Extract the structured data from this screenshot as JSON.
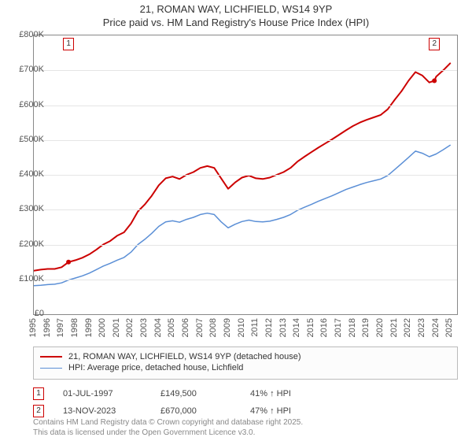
{
  "title": {
    "line1": "21, ROMAN WAY, LICHFIELD, WS14 9YP",
    "line2": "Price paid vs. HM Land Registry's House Price Index (HPI)",
    "fontsize": 13,
    "color": "#333333"
  },
  "chart": {
    "type": "line",
    "background_color": "#ffffff",
    "border_color": "#888888",
    "grid_color": "#e5e5e5",
    "label_fontsize": 11,
    "label_color": "#555555",
    "x": {
      "min": 1995,
      "max": 2025.5,
      "ticks": [
        1995,
        1996,
        1997,
        1998,
        1999,
        2000,
        2001,
        2002,
        2003,
        2004,
        2005,
        2006,
        2007,
        2008,
        2009,
        2010,
        2011,
        2012,
        2013,
        2014,
        2015,
        2016,
        2017,
        2018,
        2019,
        2020,
        2021,
        2022,
        2023,
        2024,
        2025
      ]
    },
    "y": {
      "min": 0,
      "max": 800000,
      "ticks": [
        {
          "v": 0,
          "label": "£0"
        },
        {
          "v": 100000,
          "label": "£100K"
        },
        {
          "v": 200000,
          "label": "£200K"
        },
        {
          "v": 300000,
          "label": "£300K"
        },
        {
          "v": 400000,
          "label": "£400K"
        },
        {
          "v": 500000,
          "label": "£500K"
        },
        {
          "v": 600000,
          "label": "£600K"
        },
        {
          "v": 700000,
          "label": "£700K"
        },
        {
          "v": 800000,
          "label": "£800K"
        }
      ]
    },
    "series": [
      {
        "name": "property",
        "label": "21, ROMAN WAY, LICHFIELD, WS14 9YP (detached house)",
        "color": "#cc0000",
        "line_width": 2,
        "points": [
          [
            1995.0,
            125000
          ],
          [
            1995.5,
            128000
          ],
          [
            1996.0,
            130000
          ],
          [
            1996.5,
            130000
          ],
          [
            1997.0,
            135000
          ],
          [
            1997.5,
            149500
          ],
          [
            1998.0,
            155000
          ],
          [
            1998.5,
            162000
          ],
          [
            1999.0,
            172000
          ],
          [
            1999.5,
            185000
          ],
          [
            2000.0,
            200000
          ],
          [
            2000.5,
            210000
          ],
          [
            2001.0,
            225000
          ],
          [
            2001.5,
            235000
          ],
          [
            2002.0,
            260000
          ],
          [
            2002.5,
            295000
          ],
          [
            2003.0,
            315000
          ],
          [
            2003.5,
            340000
          ],
          [
            2004.0,
            370000
          ],
          [
            2004.5,
            390000
          ],
          [
            2005.0,
            395000
          ],
          [
            2005.5,
            388000
          ],
          [
            2006.0,
            400000
          ],
          [
            2006.5,
            408000
          ],
          [
            2007.0,
            420000
          ],
          [
            2007.5,
            425000
          ],
          [
            2008.0,
            420000
          ],
          [
            2008.5,
            390000
          ],
          [
            2009.0,
            360000
          ],
          [
            2009.5,
            378000
          ],
          [
            2010.0,
            392000
          ],
          [
            2010.5,
            398000
          ],
          [
            2011.0,
            390000
          ],
          [
            2011.5,
            388000
          ],
          [
            2012.0,
            392000
          ],
          [
            2012.5,
            400000
          ],
          [
            2013.0,
            408000
          ],
          [
            2013.5,
            420000
          ],
          [
            2014.0,
            438000
          ],
          [
            2014.5,
            452000
          ],
          [
            2015.0,
            465000
          ],
          [
            2015.5,
            478000
          ],
          [
            2016.0,
            490000
          ],
          [
            2016.5,
            502000
          ],
          [
            2017.0,
            515000
          ],
          [
            2017.5,
            528000
          ],
          [
            2018.0,
            540000
          ],
          [
            2018.5,
            550000
          ],
          [
            2019.0,
            558000
          ],
          [
            2019.5,
            565000
          ],
          [
            2020.0,
            572000
          ],
          [
            2020.5,
            588000
          ],
          [
            2021.0,
            615000
          ],
          [
            2021.5,
            640000
          ],
          [
            2022.0,
            670000
          ],
          [
            2022.5,
            695000
          ],
          [
            2023.0,
            685000
          ],
          [
            2023.5,
            665000
          ],
          [
            2023.87,
            670000
          ],
          [
            2024.0,
            682000
          ],
          [
            2024.5,
            700000
          ],
          [
            2025.0,
            720000
          ]
        ]
      },
      {
        "name": "hpi",
        "label": "HPI: Average price, detached house, Lichfield",
        "color": "#5b8fd6",
        "line_width": 1.5,
        "points": [
          [
            1995.0,
            82000
          ],
          [
            1995.5,
            83000
          ],
          [
            1996.0,
            85000
          ],
          [
            1996.5,
            86000
          ],
          [
            1997.0,
            90000
          ],
          [
            1997.5,
            98000
          ],
          [
            1998.0,
            104000
          ],
          [
            1998.5,
            110000
          ],
          [
            1999.0,
            118000
          ],
          [
            1999.5,
            128000
          ],
          [
            2000.0,
            138000
          ],
          [
            2000.5,
            146000
          ],
          [
            2001.0,
            155000
          ],
          [
            2001.5,
            163000
          ],
          [
            2002.0,
            178000
          ],
          [
            2002.5,
            200000
          ],
          [
            2003.0,
            215000
          ],
          [
            2003.5,
            232000
          ],
          [
            2004.0,
            252000
          ],
          [
            2004.5,
            265000
          ],
          [
            2005.0,
            268000
          ],
          [
            2005.5,
            264000
          ],
          [
            2006.0,
            272000
          ],
          [
            2006.5,
            278000
          ],
          [
            2007.0,
            286000
          ],
          [
            2007.5,
            290000
          ],
          [
            2008.0,
            286000
          ],
          [
            2008.5,
            265000
          ],
          [
            2009.0,
            248000
          ],
          [
            2009.5,
            258000
          ],
          [
            2010.0,
            266000
          ],
          [
            2010.5,
            270000
          ],
          [
            2011.0,
            266000
          ],
          [
            2011.5,
            265000
          ],
          [
            2012.0,
            267000
          ],
          [
            2012.5,
            272000
          ],
          [
            2013.0,
            278000
          ],
          [
            2013.5,
            286000
          ],
          [
            2014.0,
            298000
          ],
          [
            2014.5,
            307000
          ],
          [
            2015.0,
            315000
          ],
          [
            2015.5,
            324000
          ],
          [
            2016.0,
            332000
          ],
          [
            2016.5,
            340000
          ],
          [
            2017.0,
            349000
          ],
          [
            2017.5,
            358000
          ],
          [
            2018.0,
            365000
          ],
          [
            2018.5,
            372000
          ],
          [
            2019.0,
            378000
          ],
          [
            2019.5,
            383000
          ],
          [
            2020.0,
            388000
          ],
          [
            2020.5,
            398000
          ],
          [
            2021.0,
            415000
          ],
          [
            2021.5,
            432000
          ],
          [
            2022.0,
            450000
          ],
          [
            2022.5,
            468000
          ],
          [
            2023.0,
            462000
          ],
          [
            2023.5,
            452000
          ],
          [
            2024.0,
            460000
          ],
          [
            2024.5,
            472000
          ],
          [
            2025.0,
            485000
          ]
        ]
      }
    ],
    "markers": [
      {
        "n": "1",
        "x": 1997.5,
        "y": 149500,
        "color": "#cc0000"
      },
      {
        "n": "2",
        "x": 2023.87,
        "y": 670000,
        "color": "#cc0000"
      }
    ]
  },
  "legend": {
    "border_color": "#bbbbbb",
    "background": "#fcfcfc",
    "fontsize": 11
  },
  "transactions": [
    {
      "n": "1",
      "color": "#cc0000",
      "date": "01-JUL-1997",
      "price": "£149,500",
      "delta": "41% ↑ HPI"
    },
    {
      "n": "2",
      "color": "#cc0000",
      "date": "13-NOV-2023",
      "price": "£670,000",
      "delta": "47% ↑ HPI"
    }
  ],
  "credit": {
    "line1": "Contains HM Land Registry data © Crown copyright and database right 2025.",
    "line2": "This data is licensed under the Open Government Licence v3.0.",
    "fontsize": 10,
    "color": "#888888"
  }
}
